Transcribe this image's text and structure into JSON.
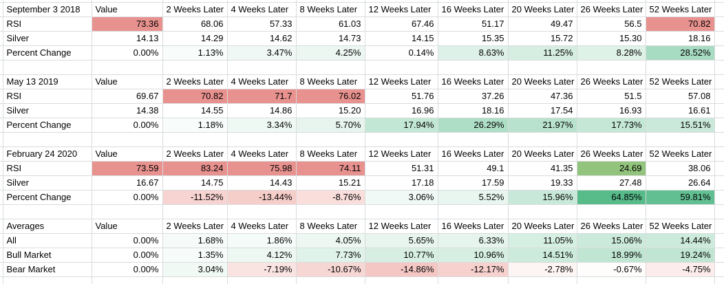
{
  "app": {
    "name": "rsi-silver-spreadsheet"
  },
  "columns": {
    "value_header": "Value",
    "week_headers": [
      "2 Weeks Later",
      "4 Weeks Later",
      "8 Weeks Later",
      "12 Weeks Later",
      "16 Weeks Later",
      "20 Weeks Later",
      "26 Weeks Later",
      "52 Weeks Later"
    ]
  },
  "sections": [
    {
      "title": "September 3 2018",
      "rows": [
        {
          "label": "RSI",
          "type": "rsi",
          "values": [
            "73.36",
            "68.06",
            "57.33",
            "61.03",
            "67.46",
            "51.17",
            "49.47",
            "56.5",
            "70.82"
          ]
        },
        {
          "label": "Silver",
          "type": "number",
          "values": [
            "14.13",
            "14.29",
            "14.62",
            "14.73",
            "14.15",
            "15.35",
            "15.72",
            "15.30",
            "18.16"
          ]
        },
        {
          "label": "Percent Change",
          "type": "percent",
          "values": [
            "0.00%",
            "1.13%",
            "3.47%",
            "4.25%",
            "0.14%",
            "8.63%",
            "11.25%",
            "8.28%",
            "28.52%"
          ]
        }
      ]
    },
    {
      "title": "May 13 2019",
      "rows": [
        {
          "label": "RSI",
          "type": "rsi",
          "values": [
            "69.67",
            "70.82",
            "71.7",
            "76.02",
            "51.76",
            "37.26",
            "47.36",
            "51.5",
            "57.08"
          ]
        },
        {
          "label": "Silver",
          "type": "number",
          "values": [
            "14.38",
            "14.55",
            "14.86",
            "15.20",
            "16.96",
            "18.16",
            "17.54",
            "16.93",
            "16.61"
          ]
        },
        {
          "label": "Percent Change",
          "type": "percent",
          "values": [
            "0.00%",
            "1.18%",
            "3.34%",
            "5.70%",
            "17.94%",
            "26.29%",
            "21.97%",
            "17.73%",
            "15.51%"
          ]
        }
      ]
    },
    {
      "title": "February 24 2020",
      "rows": [
        {
          "label": "RSI",
          "type": "rsi",
          "values": [
            "73.59",
            "83.24",
            "75.98",
            "74.11",
            "51.31",
            "49.1",
            "41.35",
            "24.69",
            "38.06"
          ]
        },
        {
          "label": "Silver",
          "type": "number",
          "values": [
            "16.67",
            "14.75",
            "14.43",
            "15.21",
            "17.18",
            "17.59",
            "19.33",
            "27.48",
            "26.64"
          ]
        },
        {
          "label": "Percent Change",
          "type": "percent",
          "values": [
            "0.00%",
            "-11.52%",
            "-13.44%",
            "-8.76%",
            "3.06%",
            "5.52%",
            "15.96%",
            "64.85%",
            "59.81%"
          ]
        }
      ]
    },
    {
      "title": "Averages",
      "rows": [
        {
          "label": "All",
          "type": "percent",
          "values": [
            "0.00%",
            "1.68%",
            "1.86%",
            "4.05%",
            "5.65%",
            "6.33%",
            "11.05%",
            "15.06%",
            "14.44%"
          ]
        },
        {
          "label": "Bull Market",
          "type": "percent",
          "values": [
            "0.00%",
            "1.35%",
            "4.12%",
            "7.73%",
            "10.77%",
            "10.96%",
            "14.51%",
            "18.99%",
            "19.24%"
          ]
        },
        {
          "label": "Bear Market",
          "type": "percent",
          "values": [
            "0.00%",
            "3.04%",
            "-7.19%",
            "-10.67%",
            "-14.86%",
            "-12.17%",
            "-2.78%",
            "-0.67%",
            "-4.75%"
          ]
        }
      ]
    }
  ],
  "colors": {
    "background": "#ffffff",
    "text": "#000000",
    "gridline": "#d9dbdd",
    "rsi_overbought_bg": "#e8928f",
    "rsi_oversold_bg": "#93c47d",
    "percent_positive_full": "#57bb8a",
    "percent_negative_full": "#e67c73"
  },
  "conditional_format": {
    "rsi_high_threshold": 70,
    "rsi_low_threshold": 30,
    "positive_full_scale": 65,
    "positive_gamma": 0.8,
    "negative_full_scale": 35
  }
}
